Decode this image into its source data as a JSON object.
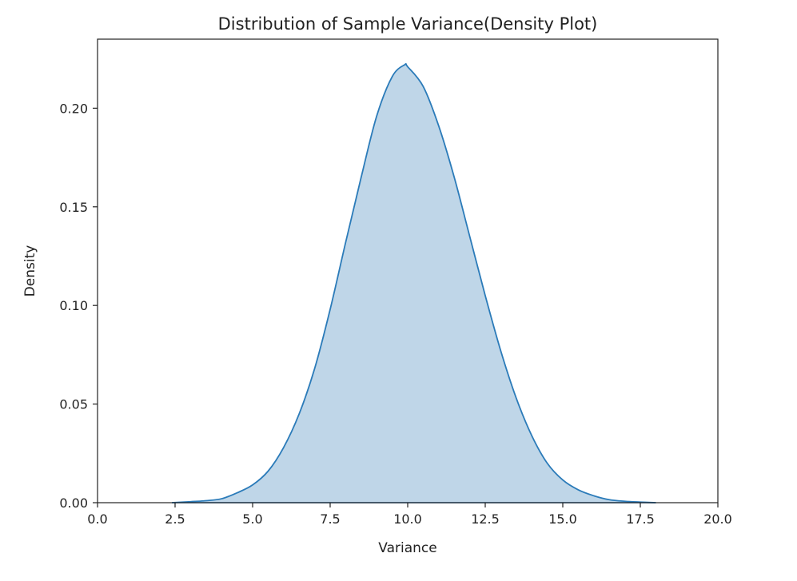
{
  "chart_data": {
    "type": "area",
    "title": "Distribution of Sample Variance(Density Plot)",
    "xlabel": "Variance",
    "ylabel": "Density",
    "xlim": [
      0,
      20
    ],
    "ylim": [
      0,
      0.235
    ],
    "xticks": [
      0,
      2.5,
      5,
      7.5,
      10,
      12.5,
      15,
      17.5,
      20
    ],
    "xtick_labels": [
      "0.0",
      "2.5",
      "5.0",
      "7.5",
      "10.0",
      "12.5",
      "15.0",
      "17.5",
      "20.0"
    ],
    "yticks": [
      0,
      0.05,
      0.1,
      0.15,
      0.2
    ],
    "ytick_labels": [
      "0.00",
      "0.05",
      "0.10",
      "0.15",
      "0.20"
    ],
    "grid": false,
    "series": [
      {
        "x": [
          2.4,
          3.0,
          3.5,
          4.0,
          4.5,
          5.0,
          5.5,
          6.0,
          6.5,
          7.0,
          7.5,
          8.0,
          8.5,
          9.0,
          9.5,
          9.9,
          10.0,
          10.5,
          11.0,
          11.5,
          12.0,
          12.5,
          13.0,
          13.5,
          14.0,
          14.5,
          15.0,
          15.5,
          16.0,
          16.5,
          17.0,
          17.5,
          18.0
        ],
        "y": [
          0.0,
          0.0005,
          0.001,
          0.002,
          0.005,
          0.009,
          0.016,
          0.028,
          0.045,
          0.068,
          0.098,
          0.132,
          0.165,
          0.196,
          0.216,
          0.222,
          0.221,
          0.211,
          0.191,
          0.165,
          0.135,
          0.105,
          0.077,
          0.053,
          0.034,
          0.02,
          0.0115,
          0.0065,
          0.0035,
          0.0015,
          0.0007,
          0.0003,
          0.0
        ]
      }
    ],
    "colors": {
      "line": "#2b7bb9",
      "fill": "#bfd6e8",
      "axes": "#222222"
    }
  }
}
